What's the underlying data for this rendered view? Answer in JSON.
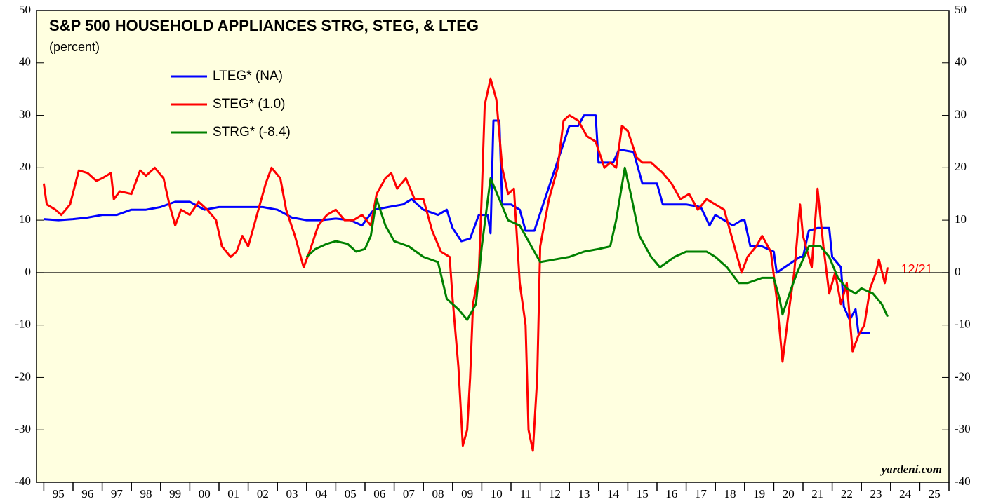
{
  "chart_data": {
    "type": "line",
    "title": "S&P 500 HOUSEHOLD APPLIANCES STRG, STEG, & LTEG",
    "subtitle": "(percent)",
    "annotations": [
      "12/21",
      "yardeni.com"
    ],
    "xlim": [
      1994.75,
      2026.0
    ],
    "xticks": [
      1995,
      1996,
      1997,
      1998,
      1999,
      2000,
      2001,
      2002,
      2003,
      2004,
      2005,
      2006,
      2007,
      2008,
      2009,
      2010,
      2011,
      2012,
      2013,
      2014,
      2015,
      2016,
      2017,
      2018,
      2019,
      2020,
      2021,
      2022,
      2023,
      2024,
      2025,
      2026
    ],
    "xtick_labels": [
      "95",
      "96",
      "97",
      "98",
      "99",
      "00",
      "01",
      "02",
      "03",
      "04",
      "05",
      "06",
      "07",
      "08",
      "09",
      "10",
      "11",
      "12",
      "13",
      "14",
      "15",
      "16",
      "17",
      "18",
      "19",
      "20",
      "21",
      "22",
      "23",
      "24",
      "25"
    ],
    "ylim": [
      -40,
      50
    ],
    "yticks": [
      -40,
      -30,
      -20,
      -10,
      0,
      10,
      20,
      30,
      40,
      50
    ],
    "zero_line": true,
    "series": [
      {
        "name": "LTEG* (NA)",
        "color": "#0000ff",
        "x": [
          1995.0,
          1995.5,
          1996,
          1996.5,
          1997,
          1997.5,
          1998,
          1998.5,
          1999,
          1999.5,
          2000,
          2000.5,
          2001,
          2001.5,
          2002,
          2002.5,
          2003,
          2003.5,
          2004,
          2004.5,
          2005,
          2005.5,
          2005.9,
          2006.3,
          2006.8,
          2007.3,
          2007.6,
          2008,
          2008.5,
          2008.8,
          2009,
          2009.3,
          2009.6,
          2009.9,
          2010.2,
          2010.3,
          2010.4,
          2010.6,
          2010.7,
          2011,
          2011.3,
          2011.5,
          2011.8,
          2013,
          2013.3,
          2013.5,
          2013.9,
          2014,
          2014.5,
          2014.7,
          2015.2,
          2015.5,
          2016,
          2016.2,
          2017,
          2017.5,
          2017.8,
          2018,
          2018.3,
          2018.6,
          2018.9,
          2019,
          2019.2,
          2019.6,
          2020,
          2020.1,
          2020.9,
          2021,
          2021.2,
          2021.5,
          2021.9,
          2022,
          2022.3,
          2022.4,
          2022.6,
          2022.8,
          2022.9,
          2023.3
        ],
        "values": [
          10.2,
          10,
          10.2,
          10.5,
          11,
          11,
          12,
          12,
          12.5,
          13.5,
          13.5,
          12,
          12.5,
          12.5,
          12.5,
          12.5,
          12,
          10.5,
          10,
          10,
          10.3,
          10,
          9,
          12,
          12.5,
          13,
          14,
          12,
          11,
          12,
          8.5,
          6,
          6.5,
          11,
          11,
          7.5,
          29,
          29,
          13,
          13,
          12,
          8,
          8,
          28,
          28,
          30,
          30,
          21,
          21,
          23.5,
          23,
          17,
          17,
          13,
          13,
          12.5,
          9,
          11,
          10,
          9,
          10,
          10,
          5,
          5,
          4,
          0,
          3,
          3,
          8,
          8.5,
          8.5,
          3,
          1,
          -6.5,
          -9,
          -7,
          -11.5,
          -11.5
        ]
      },
      {
        "name": "STEG* (1.0)",
        "color": "#ff0000",
        "x": [
          1995,
          1995.1,
          1995.4,
          1995.6,
          1995.9,
          1996.2,
          1996.5,
          1996.8,
          1997,
          1997.3,
          1997.4,
          1997.6,
          1998,
          1998.3,
          1998.5,
          1998.8,
          1999.1,
          1999.3,
          1999.5,
          1999.7,
          2000,
          2000.3,
          2000.6,
          2000.9,
          2001.1,
          2001.4,
          2001.6,
          2001.8,
          2002,
          2002.3,
          2002.6,
          2002.8,
          2003.1,
          2003.3,
          2003.6,
          2003.9,
          2004.1,
          2004.4,
          2004.7,
          2005,
          2005.3,
          2005.6,
          2005.9,
          2006.2,
          2006.4,
          2006.7,
          2006.9,
          2007.1,
          2007.4,
          2007.7,
          2008,
          2008.3,
          2008.6,
          2008.9,
          2009,
          2009.2,
          2009.35,
          2009.5,
          2009.6,
          2009.7,
          2009.9,
          2010,
          2010.1,
          2010.3,
          2010.5,
          2010.7,
          2010.9,
          2011.1,
          2011.3,
          2011.5,
          2011.6,
          2011.75,
          2011.9,
          2012,
          2012.3,
          2012.6,
          2012.8,
          2013,
          2013.3,
          2013.6,
          2013.9,
          2014.2,
          2014.4,
          2014.6,
          2014.8,
          2015,
          2015.3,
          2015.5,
          2015.8,
          2016.2,
          2016.5,
          2016.8,
          2017.1,
          2017.4,
          2017.7,
          2018,
          2018.3,
          2018.6,
          2018.9,
          2019.1,
          2019.4,
          2019.6,
          2019.9,
          2020.1,
          2020.3,
          2020.5,
          2020.7,
          2020.9,
          2021,
          2021.3,
          2021.5,
          2021.7,
          2021.9,
          2022.1,
          2022.3,
          2022.5,
          2022.7,
          2022.9,
          2023.1,
          2023.3,
          2023.5,
          2023.6,
          2023.8,
          2023.9
        ],
        "values": [
          17,
          13,
          12,
          11,
          13,
          19.5,
          19,
          17.5,
          18,
          19,
          14,
          15.5,
          15,
          19.5,
          18.5,
          20,
          18,
          13,
          9,
          12,
          11,
          13.5,
          12,
          10,
          5,
          3,
          4,
          7,
          5,
          11,
          17,
          20,
          18,
          12,
          7,
          1,
          4,
          9,
          11,
          12,
          10,
          10,
          11,
          9,
          15,
          18,
          19,
          16,
          18,
          14,
          14,
          8,
          4,
          3,
          -5,
          -18,
          -33,
          -30,
          -20,
          -6,
          0,
          15,
          32,
          37,
          33,
          20,
          15,
          16,
          -2,
          -10,
          -30,
          -34,
          -20,
          5,
          14,
          20,
          29,
          30,
          29,
          26,
          25,
          20,
          21,
          20,
          28,
          27,
          22,
          21,
          21,
          19,
          17,
          14,
          15,
          12,
          14,
          13,
          12,
          6,
          0,
          3,
          5,
          7,
          4,
          -5,
          -17,
          -8,
          0,
          13,
          7,
          1,
          16,
          5,
          -4,
          0,
          -6,
          -2,
          -15,
          -12,
          -10,
          -3,
          0,
          2.5,
          -2,
          1
        ]
      },
      {
        "name": "STRG* (-8.4)",
        "color": "#008000",
        "x": [
          2004,
          2004.3,
          2004.7,
          2005,
          2005.4,
          2005.7,
          2006,
          2006.2,
          2006.4,
          2006.7,
          2007,
          2007.5,
          2008,
          2008.5,
          2008.8,
          2009.2,
          2009.5,
          2009.8,
          2010,
          2010.3,
          2010.6,
          2010.9,
          2011.3,
          2011.7,
          2012,
          2012.5,
          2013,
          2013.5,
          2014,
          2014.4,
          2014.6,
          2014.9,
          2015.1,
          2015.4,
          2015.8,
          2016.1,
          2016.6,
          2017,
          2017.7,
          2018,
          2018.4,
          2018.8,
          2019.1,
          2019.6,
          2020,
          2020.2,
          2020.3,
          2020.6,
          2020.8,
          2021.2,
          2021.6,
          2021.9,
          2022.2,
          2022.5,
          2022.8,
          2023,
          2023.4,
          2023.7,
          2023.9
        ],
        "values": [
          3,
          4.5,
          5.5,
          6,
          5.5,
          4,
          4.5,
          7,
          14,
          9,
          6,
          5,
          3,
          2,
          -5,
          -7,
          -9,
          -6,
          5,
          18,
          14,
          10,
          9,
          5,
          2,
          2.5,
          3,
          4,
          4.5,
          5,
          10,
          20,
          15,
          7,
          3,
          1,
          3,
          4,
          4,
          3,
          1,
          -2,
          -2,
          -1,
          -1,
          -5,
          -8,
          -3,
          0,
          5,
          5,
          3,
          -1,
          -3,
          -4,
          -3,
          -4,
          -6,
          -8.4
        ]
      }
    ]
  }
}
